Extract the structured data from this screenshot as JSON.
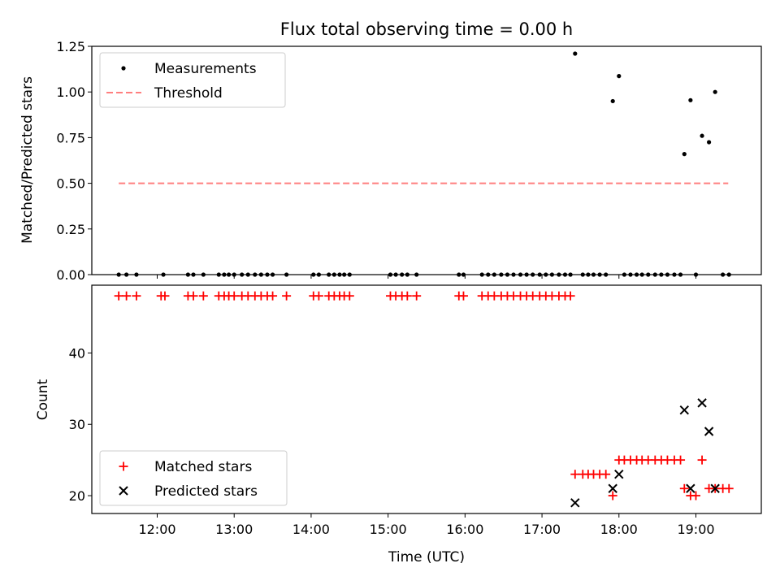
{
  "chart_data": [
    {
      "type": "scatter",
      "title": "Flux total observing time = 0.00 h",
      "xlabel": "",
      "ylabel": "Matched/Predicted stars",
      "xlim": [
        11.15,
        19.85
      ],
      "ylim": [
        0.0,
        1.25
      ],
      "yticks": [
        {
          "v": 0.0,
          "label": "0.00"
        },
        {
          "v": 0.25,
          "label": "0.25"
        },
        {
          "v": 0.5,
          "label": "0.50"
        },
        {
          "v": 0.75,
          "label": "0.75"
        },
        {
          "v": 1.0,
          "label": "1.00"
        },
        {
          "v": 1.25,
          "label": "1.25"
        }
      ],
      "threshold": {
        "name": "Threshold",
        "y": 0.5,
        "x_start": 11.5,
        "x_end": 19.42,
        "color": "#ff7f7f"
      },
      "legend": {
        "placement": "upper-left",
        "entries": [
          "Measurements",
          "Threshold"
        ]
      },
      "series": [
        {
          "name": "Measurements",
          "color": "#000000",
          "x": [
            11.5,
            11.6,
            11.73,
            12.08,
            12.4,
            12.47,
            12.6,
            12.8,
            12.87,
            12.93,
            13.0,
            13.1,
            13.18,
            13.27,
            13.35,
            13.43,
            13.5,
            13.68,
            14.03,
            14.1,
            14.23,
            14.3,
            14.37,
            14.43,
            14.5,
            15.03,
            15.1,
            15.18,
            15.25,
            15.37,
            15.92,
            15.98,
            16.22,
            16.3,
            16.38,
            16.47,
            16.55,
            16.63,
            16.72,
            16.8,
            16.88,
            16.97,
            17.05,
            17.13,
            17.22,
            17.3,
            17.37,
            17.43,
            17.53,
            17.6,
            17.67,
            17.75,
            17.83,
            17.92,
            18.0,
            18.07,
            18.15,
            18.23,
            18.3,
            18.38,
            18.47,
            18.55,
            18.63,
            18.72,
            18.8,
            18.85,
            18.93,
            19.0,
            19.08,
            19.17,
            19.25,
            19.35,
            19.43
          ],
          "y": [
            0,
            0,
            0,
            0,
            0,
            0,
            0,
            0,
            0,
            0,
            0,
            0,
            0,
            0,
            0,
            0,
            0,
            0,
            0,
            0,
            0,
            0,
            0,
            0,
            0,
            0,
            0,
            0,
            0,
            0,
            0,
            0,
            0,
            0,
            0,
            0,
            0,
            0,
            0,
            0,
            0,
            0,
            0,
            0,
            0,
            0,
            0,
            1.21,
            0,
            0,
            0,
            0,
            0,
            0.95,
            1.087,
            0,
            0,
            0,
            0,
            0,
            0,
            0,
            0,
            0,
            0,
            0.66,
            0.955,
            0,
            0.76,
            0.725,
            1.0,
            0,
            0
          ]
        }
      ]
    },
    {
      "type": "scatter",
      "title": "",
      "xlabel": "Time (UTC)",
      "ylabel": "Count",
      "xlim": [
        11.15,
        19.85
      ],
      "ylim": [
        17.5,
        49.5
      ],
      "yticks": [
        {
          "v": 20,
          "label": "20"
        },
        {
          "v": 30,
          "label": "30"
        },
        {
          "v": 40,
          "label": "40"
        }
      ],
      "xticks": [
        {
          "v": 12,
          "label": "12:00"
        },
        {
          "v": 13,
          "label": "13:00"
        },
        {
          "v": 14,
          "label": "14:00"
        },
        {
          "v": 15,
          "label": "15:00"
        },
        {
          "v": 16,
          "label": "16:00"
        },
        {
          "v": 17,
          "label": "17:00"
        },
        {
          "v": 18,
          "label": "18:00"
        },
        {
          "v": 19,
          "label": "19:00"
        }
      ],
      "legend": {
        "placement": "lower-left",
        "entries": [
          "Matched stars",
          "Predicted stars"
        ]
      },
      "series": [
        {
          "name": "Matched stars",
          "marker": "plus",
          "color": "#ff0000",
          "x": [
            11.5,
            11.6,
            11.73,
            12.05,
            12.1,
            12.4,
            12.47,
            12.6,
            12.8,
            12.87,
            12.93,
            13.0,
            13.1,
            13.18,
            13.27,
            13.35,
            13.43,
            13.5,
            13.68,
            14.03,
            14.1,
            14.23,
            14.3,
            14.37,
            14.43,
            14.5,
            15.03,
            15.1,
            15.18,
            15.25,
            15.37,
            15.92,
            15.98,
            16.22,
            16.3,
            16.38,
            16.47,
            16.55,
            16.63,
            16.72,
            16.8,
            16.88,
            16.97,
            17.05,
            17.13,
            17.22,
            17.3,
            17.37,
            17.43,
            17.53,
            17.6,
            17.67,
            17.75,
            17.83,
            17.92,
            18.0,
            18.07,
            18.15,
            18.23,
            18.3,
            18.38,
            18.47,
            18.55,
            18.63,
            18.72,
            18.8,
            18.85,
            18.93,
            19.0,
            19.08,
            19.17,
            19.25,
            19.35,
            19.43
          ],
          "y": [
            48,
            48,
            48,
            48,
            48,
            48,
            48,
            48,
            48,
            48,
            48,
            48,
            48,
            48,
            48,
            48,
            48,
            48,
            48,
            48,
            48,
            48,
            48,
            48,
            48,
            48,
            48,
            48,
            48,
            48,
            48,
            48,
            48,
            48,
            48,
            48,
            48,
            48,
            48,
            48,
            48,
            48,
            48,
            48,
            48,
            48,
            48,
            48,
            23,
            23,
            23,
            23,
            23,
            23,
            20,
            25,
            25,
            25,
            25,
            25,
            25,
            25,
            25,
            25,
            25,
            25,
            21,
            20,
            20,
            25,
            21,
            21,
            21,
            21
          ]
        },
        {
          "name": "Predicted stars",
          "marker": "x",
          "color": "#000000",
          "x": [
            17.43,
            17.92,
            18.0,
            18.85,
            18.93,
            19.08,
            19.17,
            19.25
          ],
          "y": [
            19,
            21,
            23,
            32,
            21,
            33,
            29,
            21
          ]
        }
      ]
    }
  ]
}
